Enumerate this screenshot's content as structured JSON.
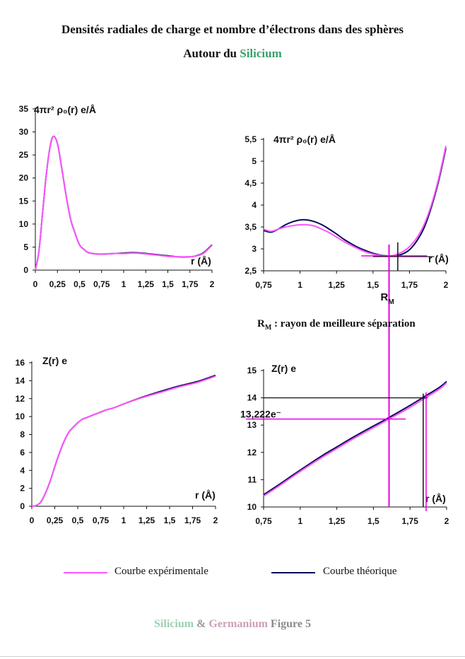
{
  "header": {
    "title": "Densités radiales de charge et nombre d’électrons dans des sphères",
    "subtitle_prefix": "Autour du ",
    "subtitle_element": "Silicium"
  },
  "colors": {
    "experimental": "#ff55ff",
    "theoretical": "#0a0a5a",
    "annotation_magenta": "#e600e6",
    "annotation_dark": "#111111",
    "silicium": "#3aa06c"
  },
  "rm_caption": {
    "symbol": "R",
    "sub": "M",
    "text": " : rayon de meilleure séparation"
  },
  "rm_marker": {
    "symbol": "R",
    "sub": "M"
  },
  "legend": [
    {
      "label": "Courbe expérimentale",
      "color": "#ff55ff"
    },
    {
      "label": "Courbe théorique",
      "color": "#0a0a5a"
    }
  ],
  "footer": {
    "silicium": "Silicium",
    "amp": " & ",
    "germanium": "Germanium",
    "figure": " Figure 5"
  },
  "chart_data": [
    {
      "type": "line",
      "ylabel": "4πr² ρ₀(r) e/Å",
      "xlabel": "r (Å)",
      "xlim": [
        0,
        2
      ],
      "ylim": [
        0,
        35
      ],
      "xticks": [
        "0",
        "0,25",
        "0,5",
        "0,75",
        "1",
        "1,25",
        "1,5",
        "1,75",
        "2"
      ],
      "yticks": [
        "0",
        "5",
        "10",
        "15",
        "20",
        "25",
        "30",
        "35"
      ],
      "grid": false,
      "series": [
        {
          "name": "Courbe expérimentale",
          "color": "#ff55ff",
          "x": [
            0,
            0.04,
            0.08,
            0.12,
            0.16,
            0.2,
            0.25,
            0.3,
            0.35,
            0.4,
            0.45,
            0.5,
            0.55,
            0.6,
            0.7,
            0.8,
            0.9,
            1.0,
            1.1,
            1.2,
            1.3,
            1.4,
            1.5,
            1.6,
            1.7,
            1.8,
            1.9,
            2.0
          ],
          "y": [
            0,
            4,
            12,
            20,
            26,
            29,
            27.5,
            22,
            16,
            11,
            8,
            5.5,
            4.5,
            3.8,
            3.5,
            3.5,
            3.6,
            3.6,
            3.7,
            3.6,
            3.4,
            3.2,
            3.0,
            2.9,
            2.9,
            3.0,
            3.6,
            5.4
          ]
        },
        {
          "name": "Courbe théorique",
          "color": "#0a0a5a",
          "x": [
            0,
            0.04,
            0.08,
            0.12,
            0.16,
            0.2,
            0.25,
            0.3,
            0.35,
            0.4,
            0.45,
            0.5,
            0.55,
            0.6,
            0.7,
            0.8,
            0.9,
            1.0,
            1.1,
            1.2,
            1.3,
            1.4,
            1.5,
            1.6,
            1.7,
            1.8,
            1.9,
            2.0
          ],
          "y": [
            0,
            4,
            12,
            20,
            26,
            29,
            27.5,
            22,
            16,
            11,
            8,
            5.5,
            4.5,
            3.8,
            3.5,
            3.5,
            3.6,
            3.7,
            3.8,
            3.7,
            3.5,
            3.3,
            3.1,
            2.9,
            2.85,
            3.0,
            3.7,
            5.5
          ]
        }
      ]
    },
    {
      "type": "line",
      "ylabel": "4πr² ρ₀(r) e/Å",
      "xlabel": "r (Å)",
      "xlim": [
        0.75,
        2
      ],
      "ylim": [
        2.5,
        5.5
      ],
      "xticks": [
        "0,75",
        "1",
        "1,25",
        "1,5",
        "1,75",
        "2"
      ],
      "yticks": [
        "2,5",
        "3",
        "3,5",
        "4",
        "4,5",
        "5",
        "5,5"
      ],
      "grid": false,
      "series": [
        {
          "name": "Courbe expérimentale",
          "color": "#ff55ff",
          "x": [
            0.75,
            0.8,
            0.85,
            0.9,
            0.95,
            1.0,
            1.05,
            1.1,
            1.15,
            1.2,
            1.25,
            1.3,
            1.35,
            1.4,
            1.45,
            1.5,
            1.55,
            1.6,
            1.65,
            1.7,
            1.75,
            1.8,
            1.85,
            1.9,
            1.95,
            2.0
          ],
          "y": [
            3.45,
            3.4,
            3.45,
            3.5,
            3.53,
            3.55,
            3.55,
            3.52,
            3.45,
            3.37,
            3.27,
            3.17,
            3.08,
            3.0,
            2.93,
            2.88,
            2.85,
            2.84,
            2.86,
            2.93,
            3.05,
            3.25,
            3.55,
            4.0,
            4.6,
            5.35
          ]
        },
        {
          "name": "Courbe théorique",
          "color": "#0a0a5a",
          "x": [
            0.75,
            0.8,
            0.85,
            0.9,
            0.95,
            1.0,
            1.05,
            1.1,
            1.15,
            1.2,
            1.25,
            1.3,
            1.35,
            1.4,
            1.45,
            1.5,
            1.55,
            1.6,
            1.65,
            1.7,
            1.75,
            1.8,
            1.85,
            1.9,
            1.95,
            2.0
          ],
          "y": [
            3.42,
            3.38,
            3.45,
            3.55,
            3.62,
            3.66,
            3.66,
            3.62,
            3.55,
            3.45,
            3.34,
            3.22,
            3.12,
            3.03,
            2.96,
            2.9,
            2.86,
            2.84,
            2.84,
            2.88,
            2.98,
            3.18,
            3.48,
            3.95,
            4.55,
            5.3
          ]
        }
      ],
      "annotations": {
        "rm_label": "RM"
      }
    },
    {
      "type": "line",
      "ylabel": "Z(r) e",
      "xlabel": "r (Å)",
      "xlim": [
        0,
        2
      ],
      "ylim": [
        0,
        16
      ],
      "xticks": [
        "0",
        "0,25",
        "0,5",
        "0,75",
        "1",
        "1,25",
        "1,5",
        "1,75",
        "2"
      ],
      "yticks": [
        "0",
        "2",
        "4",
        "6",
        "8",
        "10",
        "12",
        "14",
        "16"
      ],
      "grid": false,
      "series": [
        {
          "name": "Courbe expérimentale",
          "color": "#ff55ff",
          "x": [
            0,
            0.05,
            0.1,
            0.15,
            0.2,
            0.25,
            0.3,
            0.35,
            0.4,
            0.45,
            0.5,
            0.55,
            0.6,
            0.7,
            0.8,
            0.9,
            1.0,
            1.2,
            1.4,
            1.6,
            1.8,
            2.0
          ],
          "y": [
            0,
            0.1,
            0.5,
            1.5,
            2.8,
            4.4,
            5.9,
            7.2,
            8.2,
            8.8,
            9.3,
            9.7,
            9.9,
            10.3,
            10.7,
            11.0,
            11.4,
            12.1,
            12.7,
            13.3,
            13.8,
            14.5
          ]
        },
        {
          "name": "Courbe théorique",
          "color": "#0a0a5a",
          "x": [
            0,
            0.05,
            0.1,
            0.15,
            0.2,
            0.25,
            0.3,
            0.35,
            0.4,
            0.45,
            0.5,
            0.55,
            0.6,
            0.7,
            0.8,
            0.9,
            1.0,
            1.2,
            1.4,
            1.6,
            1.8,
            2.0
          ],
          "y": [
            0,
            0.1,
            0.5,
            1.5,
            2.8,
            4.4,
            5.9,
            7.2,
            8.2,
            8.8,
            9.3,
            9.7,
            9.9,
            10.3,
            10.7,
            11.0,
            11.4,
            12.15,
            12.8,
            13.4,
            13.9,
            14.6
          ]
        }
      ]
    },
    {
      "type": "line",
      "ylabel": "Z(r) e",
      "xlabel": "r (Å)",
      "xlim": [
        0.75,
        2
      ],
      "ylim": [
        10,
        15
      ],
      "xticks": [
        "0,75",
        "1",
        "1,25",
        "1,5",
        "1,75",
        "2"
      ],
      "yticks": [
        "10",
        "11",
        "12",
        "13",
        "14",
        "15"
      ],
      "grid": false,
      "series": [
        {
          "name": "Courbe expérimentale",
          "color": "#ff55ff",
          "x": [
            0.75,
            0.85,
            0.95,
            1.05,
            1.15,
            1.25,
            1.35,
            1.45,
            1.55,
            1.65,
            1.75,
            1.85,
            1.95,
            2.0
          ],
          "y": [
            10.4,
            10.75,
            11.12,
            11.48,
            11.82,
            12.14,
            12.46,
            12.76,
            13.05,
            13.35,
            13.65,
            13.98,
            14.32,
            14.55
          ]
        },
        {
          "name": "Courbe théorique",
          "color": "#0a0a5a",
          "x": [
            0.75,
            0.85,
            0.95,
            1.05,
            1.15,
            1.25,
            1.35,
            1.45,
            1.55,
            1.65,
            1.75,
            1.85,
            1.95,
            2.0
          ],
          "y": [
            10.45,
            10.8,
            11.17,
            11.53,
            11.88,
            12.2,
            12.52,
            12.82,
            13.11,
            13.41,
            13.72,
            14.05,
            14.38,
            14.6
          ]
        }
      ],
      "annotations": {
        "value_label": "13,222e⁻"
      }
    }
  ]
}
